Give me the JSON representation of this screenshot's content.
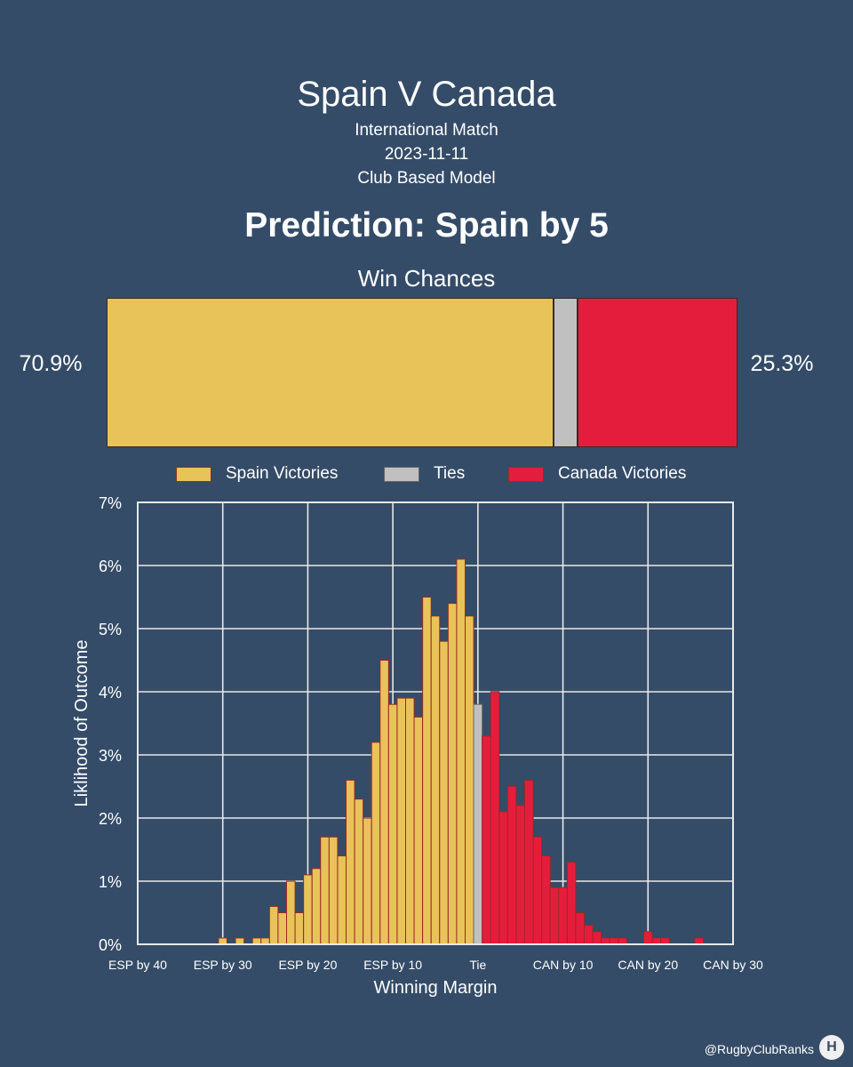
{
  "header": {
    "title": "Spain V Canada",
    "subtitle_1": "International Match",
    "subtitle_2": "2023-11-11",
    "subtitle_3": "Club Based Model",
    "prediction": "Prediction: Spain by 5"
  },
  "win_chances": {
    "title": "Win Chances",
    "spain_pct": 70.9,
    "tie_pct": 3.8,
    "canada_pct": 25.3,
    "spain_label": "70.9%",
    "canada_label": "25.3%"
  },
  "legend": {
    "spain": "Spain Victories",
    "ties": "Ties",
    "canada": "Canada Victories"
  },
  "colors": {
    "background": "#344c68",
    "spain": "#e8c35a",
    "tie": "#c0c0c0",
    "canada": "#e51d3c",
    "bar_edge": "#9a2a22"
  },
  "footer": {
    "handle": "@RugbyClubRanks",
    "logo_icon": "H"
  },
  "chart_data": {
    "type": "bar",
    "xlabel": "Winning Margin",
    "ylabel": "Liklihood of Outcome",
    "xlim": [
      -40,
      30
    ],
    "ylim": [
      0,
      7
    ],
    "x_ticks": [
      -40,
      -30,
      -20,
      -10,
      0,
      10,
      20,
      30
    ],
    "x_tick_labels": [
      "ESP by 40",
      "ESP by 30",
      "ESP by 20",
      "ESP by 10",
      "Tie",
      "CAN by 10",
      "CAN by 20",
      "CAN by 30"
    ],
    "y_ticks": [
      0,
      1,
      2,
      3,
      4,
      5,
      6,
      7
    ],
    "y_tick_labels": [
      "0%",
      "1%",
      "2%",
      "3%",
      "4%",
      "5%",
      "6%",
      "7%"
    ],
    "grid": true,
    "series": [
      {
        "name": "Spain Victories",
        "x": [
          -30,
          -28,
          -26,
          -25,
          -24,
          -23,
          -22,
          -21,
          -20,
          -19,
          -18,
          -17,
          -16,
          -15,
          -14,
          -13,
          -12,
          -11,
          -10,
          -9,
          -8,
          -7,
          -6,
          -5,
          -4,
          -3,
          -2,
          -1
        ],
        "values": [
          0.1,
          0.1,
          0.1,
          0.1,
          0.6,
          0.5,
          1.0,
          0.5,
          1.1,
          1.2,
          1.7,
          1.7,
          1.4,
          2.6,
          2.3,
          2.0,
          3.2,
          4.5,
          3.8,
          3.9,
          3.9,
          3.6,
          5.5,
          5.2,
          4.8,
          5.4,
          6.1,
          5.2
        ]
      },
      {
        "name": "Ties",
        "x": [
          0
        ],
        "values": [
          3.8
        ]
      },
      {
        "name": "Canada Victories",
        "x": [
          1,
          2,
          3,
          4,
          5,
          6,
          7,
          8,
          9,
          10,
          11,
          12,
          13,
          14,
          15,
          16,
          17,
          18,
          19,
          20,
          21,
          22,
          23,
          26
        ],
        "values": [
          3.3,
          4.0,
          2.1,
          2.5,
          2.2,
          2.6,
          1.7,
          1.4,
          0.9,
          0.9,
          1.3,
          0.5,
          0.3,
          0.2,
          0.1,
          0.1,
          0.1,
          0.0,
          0.0,
          0.2,
          0.1,
          0.1,
          0.0,
          0.1
        ]
      }
    ]
  }
}
